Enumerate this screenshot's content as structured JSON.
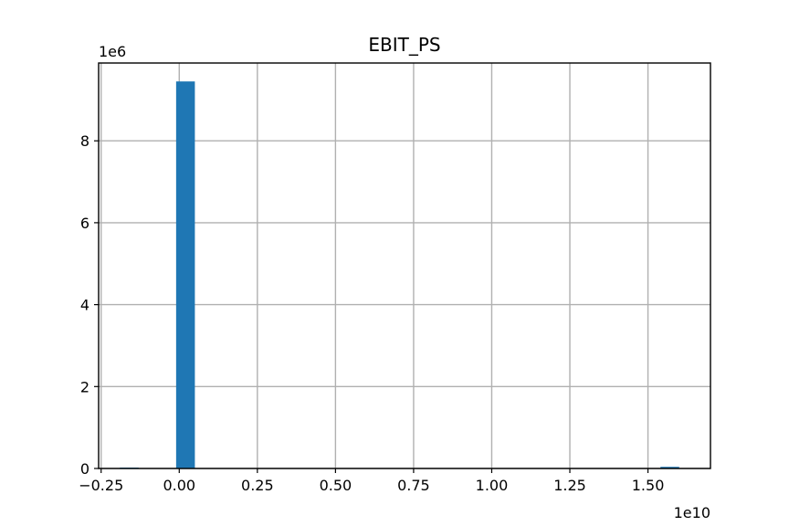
{
  "chart_data": {
    "type": "bar",
    "title": "EBIT_PS",
    "xlabel": "",
    "ylabel": "",
    "x_offset_label": "1e10",
    "y_offset_label": "1e6",
    "xlim": [
      -0.258,
      1.7
    ],
    "ylim": [
      0,
      9.9
    ],
    "xticks": [
      -0.25,
      0.0,
      0.25,
      0.5,
      0.75,
      1.0,
      1.25,
      1.5
    ],
    "xtick_labels": [
      "−0.25",
      "0.00",
      "0.25",
      "0.50",
      "0.75",
      "1.00",
      "1.25",
      "1.50"
    ],
    "yticks": [
      0,
      2,
      4,
      6,
      8
    ],
    "ytick_labels": [
      "0",
      "2",
      "4",
      "6",
      "8"
    ],
    "grid": true,
    "bar_color": "#1f77b4",
    "bins": [
      {
        "x0": -0.19,
        "x1": -0.13,
        "value": 0.02
      },
      {
        "x0": -0.01,
        "x1": 0.05,
        "value": 9.45
      },
      {
        "x0": 1.54,
        "x1": 1.6,
        "value": 0.04
      }
    ]
  }
}
